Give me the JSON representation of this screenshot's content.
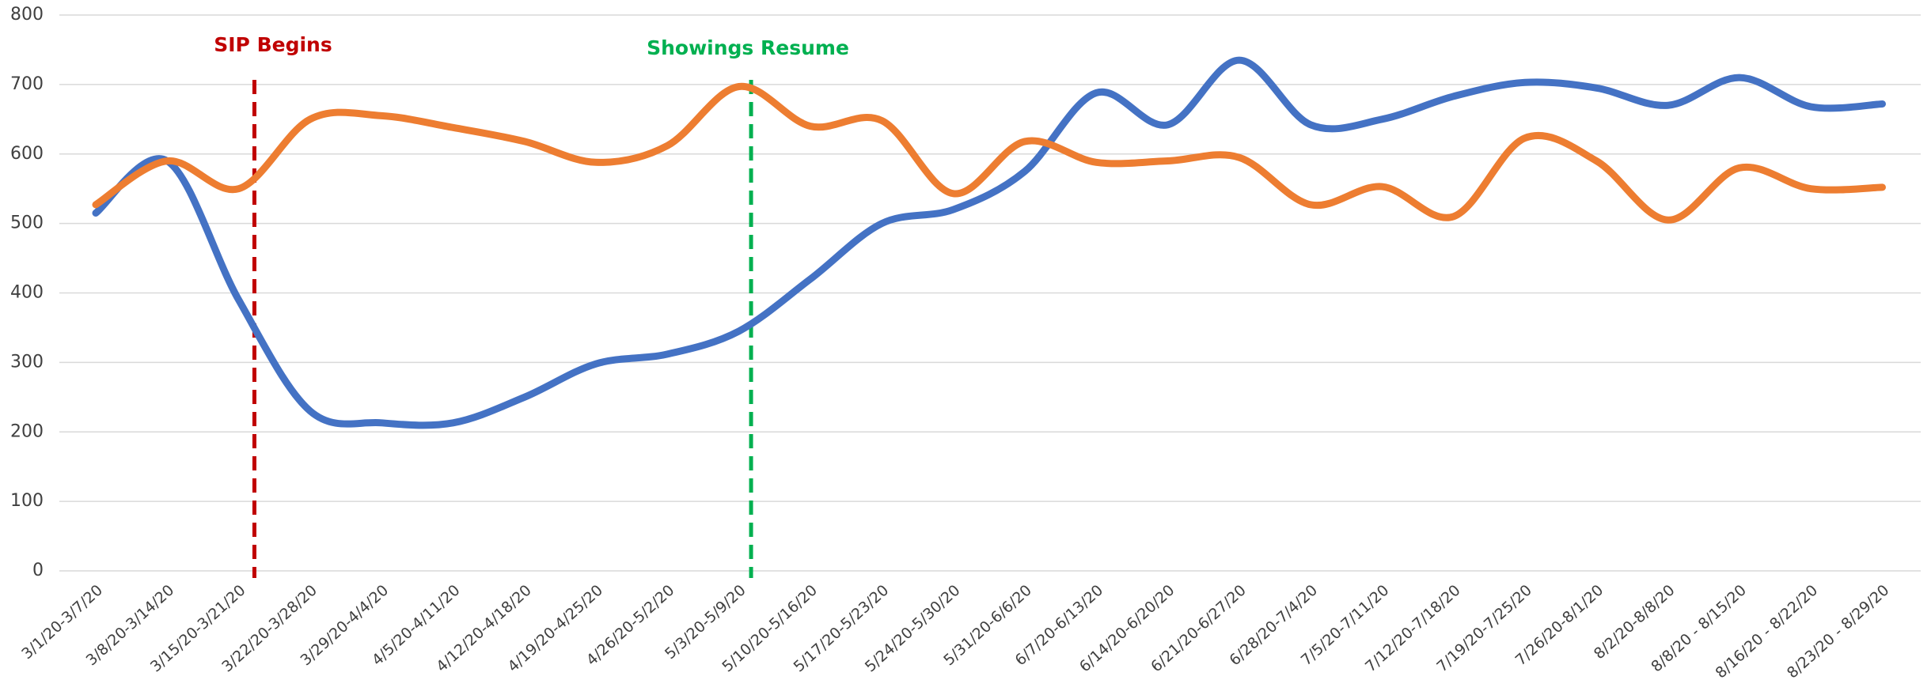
{
  "chart_data": {
    "type": "line",
    "categories": [
      "3/1/20-3/7/20",
      "3/8/20-3/14/20",
      "3/15/20-3/21/20",
      "3/22/20-3/28/20",
      "3/29/20-4/4/20",
      "4/5/20-4/11/20",
      "4/12/20-4/18/20",
      "4/19/20-4/25/20",
      "4/26/20-5/2/20",
      "5/3/20-5/9/20",
      "5/10/20-5/16/20",
      "5/17/20-5/23/20",
      "5/24/20-5/30/20",
      "5/31/20-6/6/20",
      "6/7/20-6/13/20",
      "6/14/20-6/20/20",
      "6/21/20-6/27/20",
      "6/28/20-7/4/20",
      "7/5/20-7/11/20",
      "7/12/20-7/18/20",
      "7/19/20-7/25/20",
      "7/26/20-8/1/20",
      "8/2/20-8/8/20",
      "8/8/20 - 8/15/20",
      "8/16/20 - 8/22/20",
      "8/23/20 - 8/29/20"
    ],
    "series": [
      {
        "color": "#4472c4",
        "values": [
          515,
          590,
          390,
          230,
          213,
          213,
          250,
          298,
          312,
          345,
          420,
          500,
          520,
          575,
          688,
          642,
          735,
          642,
          650,
          683,
          703,
          695,
          670,
          710,
          668,
          672
        ]
      },
      {
        "color": "#ed7d31",
        "values": [
          527,
          590,
          550,
          650,
          655,
          638,
          618,
          588,
          612,
          697,
          640,
          648,
          543,
          618,
          588,
          590,
          595,
          527,
          553,
          510,
          623,
          590,
          505,
          580,
          550,
          552
        ]
      }
    ],
    "annotations": [
      {
        "text": "SIP Begins",
        "color": "#c00000"
      },
      {
        "text": "Showings Resume",
        "color": "#00b050"
      }
    ],
    "ylim": [
      0,
      800
    ],
    "yticks": [
      0,
      100,
      200,
      300,
      400,
      500,
      600,
      700,
      800
    ],
    "grid": true
  }
}
